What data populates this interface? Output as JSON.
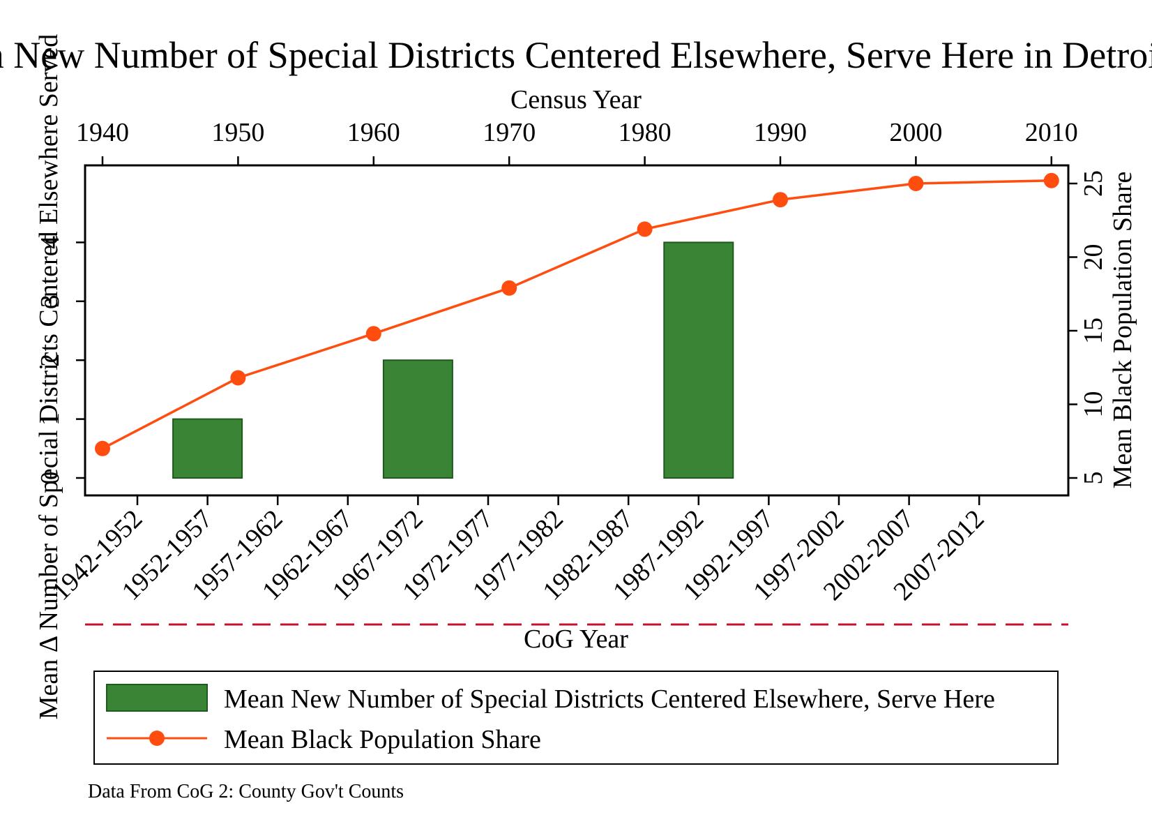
{
  "chart_data": {
    "type": "bar",
    "title": "Mean New Number of Special Districts Centered Elsewhere, Serve Here in Detroit, MI",
    "left_ylabel": "Mean Δ Number of Special Districts Centered Elsewhere Served",
    "right_ylabel": "Mean Black Population Share",
    "top_xlabel": "Census Year",
    "bottom_xlabel": "CoG Year",
    "note": "Data From CoG 2: County Gov't Counts",
    "left_yticks": [
      "0",
      "1",
      "2",
      "3",
      "4"
    ],
    "right_yticks": [
      "5",
      "10",
      "15",
      "20",
      "25"
    ],
    "left_ylim": [
      0,
      5
    ],
    "right_ylim": [
      5,
      25
    ],
    "census_years": [
      "1940",
      "1950",
      "1960",
      "1970",
      "1980",
      "1990",
      "2000",
      "2010"
    ],
    "cog_periods": [
      "1942-1952",
      "1952-1957",
      "1957-1962",
      "1962-1967",
      "1967-1972",
      "1972-1977",
      "1977-1982",
      "1982-1987",
      "1987-1992",
      "1992-1997",
      "1997-2002",
      "2002-2007",
      "2007-2012"
    ],
    "series": [
      {
        "name": "Mean New Number of Special Districts Centered Elsewhere, Serve Here",
        "type": "bar",
        "axis": "left",
        "color": "#3a8535",
        "categories": [
          "1952-1957",
          "1967-1972",
          "1987-1992"
        ],
        "values": [
          1,
          2,
          4
        ]
      },
      {
        "name": "Mean Black Population Share",
        "type": "line",
        "axis": "right",
        "color": "#ff4d0f",
        "x": [
          1940,
          1950,
          1960,
          1970,
          1980,
          1990,
          2000,
          2010
        ],
        "values": [
          7.0,
          11.8,
          14.8,
          17.9,
          21.9,
          23.9,
          25.0,
          25.2
        ]
      }
    ],
    "legend_position": "bottom",
    "grid": false
  }
}
